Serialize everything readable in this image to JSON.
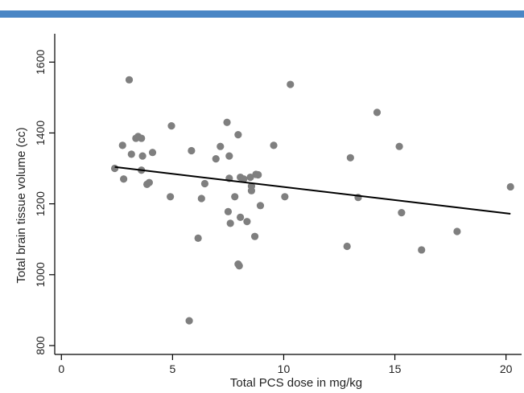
{
  "colors": {
    "header_bar": "#4a86c5",
    "points": "#7f7f7f",
    "fit_line": "#000000",
    "axis": "#000000"
  },
  "chart_data": {
    "type": "scatter",
    "title": "",
    "xlabel": "Total PCS dose in mg/kg",
    "ylabel": "Total brain tissue volume (cc)",
    "xlim": [
      -0.3,
      20.7
    ],
    "ylim": [
      775,
      1680
    ],
    "x_ticks": [
      0,
      5,
      10,
      15,
      20
    ],
    "y_ticks": [
      800,
      1000,
      1200,
      1400,
      1600
    ],
    "grid": false,
    "legend": "none",
    "points": [
      {
        "x": 2.4,
        "y": 1300
      },
      {
        "x": 2.75,
        "y": 1365
      },
      {
        "x": 2.8,
        "y": 1270
      },
      {
        "x": 3.05,
        "y": 1550
      },
      {
        "x": 3.15,
        "y": 1340
      },
      {
        "x": 3.35,
        "y": 1385
      },
      {
        "x": 3.45,
        "y": 1390
      },
      {
        "x": 3.6,
        "y": 1385
      },
      {
        "x": 3.6,
        "y": 1295
      },
      {
        "x": 3.65,
        "y": 1335
      },
      {
        "x": 3.85,
        "y": 1255
      },
      {
        "x": 3.95,
        "y": 1260
      },
      {
        "x": 4.1,
        "y": 1345
      },
      {
        "x": 4.9,
        "y": 1220
      },
      {
        "x": 4.95,
        "y": 1420
      },
      {
        "x": 5.75,
        "y": 870
      },
      {
        "x": 5.85,
        "y": 1350
      },
      {
        "x": 6.15,
        "y": 1103
      },
      {
        "x": 6.3,
        "y": 1215
      },
      {
        "x": 6.45,
        "y": 1257
      },
      {
        "x": 6.95,
        "y": 1327
      },
      {
        "x": 7.15,
        "y": 1362
      },
      {
        "x": 7.45,
        "y": 1430
      },
      {
        "x": 7.5,
        "y": 1178
      },
      {
        "x": 7.55,
        "y": 1335
      },
      {
        "x": 7.55,
        "y": 1272
      },
      {
        "x": 7.6,
        "y": 1145
      },
      {
        "x": 7.8,
        "y": 1220
      },
      {
        "x": 7.95,
        "y": 1395
      },
      {
        "x": 7.95,
        "y": 1030
      },
      {
        "x": 8.0,
        "y": 1025
      },
      {
        "x": 8.05,
        "y": 1275
      },
      {
        "x": 8.05,
        "y": 1162
      },
      {
        "x": 8.2,
        "y": 1270
      },
      {
        "x": 8.35,
        "y": 1150
      },
      {
        "x": 8.5,
        "y": 1275
      },
      {
        "x": 8.55,
        "y": 1237
      },
      {
        "x": 8.55,
        "y": 1250
      },
      {
        "x": 8.7,
        "y": 1108
      },
      {
        "x": 8.75,
        "y": 1283
      },
      {
        "x": 8.85,
        "y": 1282
      },
      {
        "x": 8.95,
        "y": 1195
      },
      {
        "x": 9.55,
        "y": 1365
      },
      {
        "x": 10.05,
        "y": 1220
      },
      {
        "x": 10.3,
        "y": 1537
      },
      {
        "x": 12.85,
        "y": 1080
      },
      {
        "x": 13.0,
        "y": 1330
      },
      {
        "x": 13.35,
        "y": 1218
      },
      {
        "x": 14.2,
        "y": 1458
      },
      {
        "x": 15.2,
        "y": 1362
      },
      {
        "x": 15.3,
        "y": 1175
      },
      {
        "x": 16.2,
        "y": 1070
      },
      {
        "x": 17.8,
        "y": 1122
      },
      {
        "x": 20.2,
        "y": 1248
      }
    ],
    "fit_line": [
      {
        "x": 2.4,
        "y": 1304
      },
      {
        "x": 20.2,
        "y": 1172
      }
    ]
  }
}
